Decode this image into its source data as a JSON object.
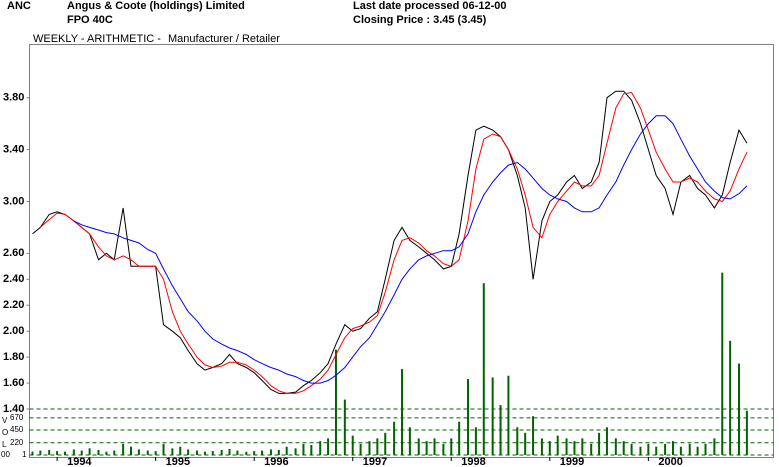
{
  "header": {
    "code": "ANC",
    "company": "Angus & Coote (holdings) Limited",
    "security": "FPO 40C",
    "last_date": "Last date processed 06-12-00",
    "closing": "Closing Price : 3.45  (3.45)"
  },
  "chart_data": {
    "type": "line",
    "subtitle": "WEEKLY - ARITHMETIC -",
    "sector": "Manufacturer / Retailer",
    "x": [
      1993.75,
      1993.83,
      1993.92,
      1994,
      1994.08,
      1994.17,
      1994.25,
      1994.33,
      1994.42,
      1994.5,
      1994.58,
      1994.67,
      1994.75,
      1994.83,
      1994.92,
      1995,
      1995.08,
      1995.17,
      1995.25,
      1995.33,
      1995.42,
      1995.5,
      1995.58,
      1995.67,
      1995.75,
      1995.83,
      1995.92,
      1996,
      1996.08,
      1996.17,
      1996.25,
      1996.33,
      1996.42,
      1996.5,
      1996.58,
      1996.67,
      1996.75,
      1996.83,
      1996.92,
      1997,
      1997.08,
      1997.17,
      1997.25,
      1997.33,
      1997.42,
      1997.5,
      1997.58,
      1997.67,
      1997.75,
      1997.83,
      1997.92,
      1998,
      1998.08,
      1998.17,
      1998.25,
      1998.33,
      1998.42,
      1998.5,
      1998.58,
      1998.67,
      1998.75,
      1998.83,
      1998.92,
      1999,
      1999.08,
      1999.17,
      1999.25,
      1999.33,
      1999.42,
      1999.5,
      1999.58,
      1999.67,
      1999.75,
      1999.83,
      1999.92,
      2000,
      2000.08,
      2000.17,
      2000.25,
      2000.33,
      2000.42,
      2000.5,
      2000.58,
      2000.67,
      2000.75,
      2000.83,
      2000.92,
      2001
    ],
    "series": [
      {
        "color": "#000000",
        "values": [
          2.75,
          2.8,
          2.9,
          2.92,
          2.9,
          2.85,
          2.8,
          2.75,
          2.55,
          2.6,
          2.55,
          2.95,
          2.5,
          2.5,
          2.5,
          2.5,
          2.05,
          2.0,
          1.95,
          1.85,
          1.75,
          1.7,
          1.72,
          1.75,
          1.82,
          1.75,
          1.72,
          1.68,
          1.62,
          1.55,
          1.52,
          1.52,
          1.53,
          1.58,
          1.62,
          1.68,
          1.75,
          1.9,
          2.05,
          2.0,
          2.02,
          2.1,
          2.15,
          2.4,
          2.7,
          2.8,
          2.7,
          2.65,
          2.6,
          2.55,
          2.48,
          2.5,
          2.75,
          3.2,
          3.55,
          3.58,
          3.55,
          3.5,
          3.4,
          3.2,
          2.95,
          2.4,
          2.85,
          3.0,
          3.05,
          3.15,
          3.2,
          3.1,
          3.15,
          3.3,
          3.8,
          3.85,
          3.85,
          3.78,
          3.6,
          3.4,
          3.2,
          3.1,
          2.9,
          3.15,
          3.2,
          3.1,
          3.05,
          2.95,
          3.05,
          3.3,
          3.55,
          3.45
        ]
      },
      {
        "color": "#ff0000",
        "values": [
          null,
          2.8,
          2.86,
          2.91,
          2.9,
          2.85,
          2.8,
          2.75,
          2.65,
          2.58,
          2.55,
          2.58,
          2.55,
          2.5,
          2.5,
          2.5,
          2.4,
          2.15,
          2.0,
          1.9,
          1.8,
          1.74,
          1.72,
          1.73,
          1.76,
          1.76,
          1.74,
          1.7,
          1.65,
          1.58,
          1.54,
          1.52,
          1.52,
          1.54,
          1.58,
          1.63,
          1.7,
          1.82,
          1.95,
          2.02,
          2.04,
          2.07,
          2.12,
          2.3,
          2.55,
          2.7,
          2.72,
          2.68,
          2.62,
          2.58,
          2.52,
          2.5,
          2.55,
          2.85,
          3.25,
          3.48,
          3.52,
          3.5,
          3.4,
          3.25,
          3.05,
          2.8,
          2.72,
          2.9,
          3.0,
          3.08,
          3.15,
          3.12,
          3.12,
          3.2,
          3.45,
          3.72,
          3.83,
          3.84,
          3.72,
          3.55,
          3.38,
          3.25,
          3.15,
          3.15,
          3.18,
          3.15,
          3.08,
          3.02,
          3.0,
          3.08,
          3.25,
          3.38
        ]
      },
      {
        "color": "#0000ff",
        "values": [
          null,
          null,
          null,
          null,
          null,
          2.85,
          2.82,
          2.8,
          2.78,
          2.76,
          2.75,
          2.72,
          2.7,
          2.68,
          2.63,
          2.6,
          2.48,
          2.35,
          2.25,
          2.15,
          2.08,
          2.0,
          1.94,
          1.9,
          1.87,
          1.85,
          1.82,
          1.78,
          1.75,
          1.72,
          1.7,
          1.67,
          1.65,
          1.62,
          1.6,
          1.6,
          1.62,
          1.66,
          1.72,
          1.8,
          1.88,
          1.95,
          2.05,
          2.15,
          2.28,
          2.4,
          2.48,
          2.55,
          2.58,
          2.6,
          2.62,
          2.62,
          2.65,
          2.75,
          2.92,
          3.05,
          3.15,
          3.22,
          3.28,
          3.3,
          3.25,
          3.18,
          3.1,
          3.05,
          3.02,
          3.0,
          2.95,
          2.92,
          2.92,
          2.95,
          3.05,
          3.15,
          3.28,
          3.4,
          3.52,
          3.6,
          3.66,
          3.66,
          3.6,
          3.48,
          3.35,
          3.25,
          3.15,
          3.08,
          3.03,
          3.02,
          3.06,
          3.12
        ]
      }
    ],
    "volume": {
      "color": "#006400",
      "values": [
        60,
        80,
        90,
        70,
        60,
        100,
        80,
        120,
        90,
        60,
        80,
        200,
        150,
        100,
        80,
        70,
        200,
        120,
        150,
        100,
        80,
        60,
        70,
        90,
        110,
        80,
        60,
        70,
        80,
        100,
        90,
        150,
        120,
        200,
        180,
        250,
        300,
        1900,
        1000,
        350,
        200,
        250,
        300,
        400,
        600,
        1550,
        500,
        300,
        250,
        300,
        200,
        300,
        600,
        1370,
        500,
        3100,
        1400,
        900,
        1430,
        500,
        400,
        700,
        300,
        250,
        350,
        300,
        250,
        300,
        200,
        400,
        500,
        300,
        250,
        200,
        150,
        200,
        150,
        200,
        250,
        150,
        200,
        150,
        200,
        300,
        3290,
        2060,
        1650,
        800
      ]
    },
    "volume_axis_letters": [
      "V",
      "O",
      "L",
      "1"
    ],
    "volume_ylim": [
      0,
      830
    ],
    "volume_yticks": [
      {
        "value": 0,
        "label": "00"
      },
      220,
      450,
      670
    ],
    "xlim": [
      1993.72,
      2001.27
    ],
    "xticks": [
      1994,
      1995,
      1996,
      1997,
      1998,
      1999,
      2000
    ],
    "ylim": [
      1.4,
      4.21
    ],
    "yticks": [
      {
        "value": 1.4,
        "label": "1.40"
      },
      {
        "value": 1.6,
        "label": "1.60"
      },
      {
        "value": 1.8,
        "label": "1.80"
      },
      {
        "value": 2.0,
        "label": "2.00"
      },
      {
        "value": 2.2,
        "label": "2.20"
      },
      {
        "value": 2.4,
        "label": "2.40"
      },
      {
        "value": 2.6,
        "label": "2.60"
      },
      {
        "value": 3.0,
        "label": "3.00"
      },
      {
        "value": 3.4,
        "label": "3.40"
      },
      {
        "value": 3.8,
        "label": "3.80"
      }
    ]
  }
}
